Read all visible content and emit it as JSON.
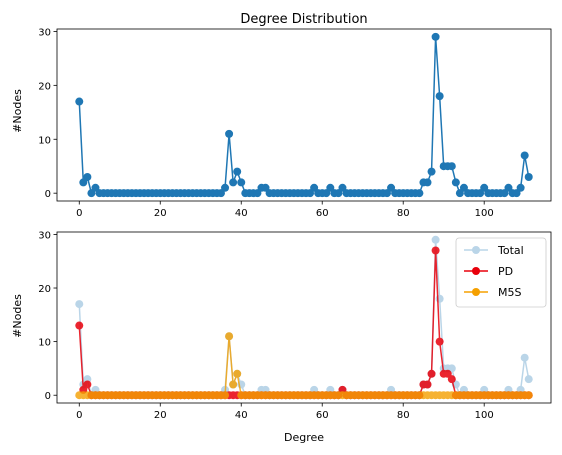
{
  "chart_data": [
    {
      "type": "line",
      "title": "Degree Distribution",
      "xlabel": "",
      "ylabel": "#Nodes",
      "xlim": [
        -5.5,
        116.5
      ],
      "ylim": [
        -1.45,
        30.45
      ],
      "xticks": [
        0,
        20,
        40,
        60,
        80,
        100
      ],
      "yticks": [
        0,
        10,
        20,
        30
      ],
      "grid": false,
      "series": [
        {
          "color": "#1f77b4",
          "marker": "circle",
          "x": [
            0,
            1,
            2,
            3,
            4,
            5,
            6,
            7,
            8,
            9,
            10,
            11,
            12,
            13,
            14,
            15,
            16,
            17,
            18,
            19,
            20,
            21,
            22,
            23,
            24,
            25,
            26,
            27,
            28,
            29,
            30,
            31,
            32,
            33,
            34,
            35,
            36,
            37,
            38,
            39,
            40,
            41,
            42,
            43,
            44,
            45,
            46,
            47,
            48,
            49,
            50,
            51,
            52,
            53,
            54,
            55,
            56,
            57,
            58,
            59,
            60,
            61,
            62,
            63,
            64,
            65,
            66,
            67,
            68,
            69,
            70,
            71,
            72,
            73,
            74,
            75,
            76,
            77,
            78,
            79,
            80,
            81,
            82,
            83,
            84,
            85,
            86,
            87,
            88,
            89,
            90,
            91,
            92,
            93,
            94,
            95,
            96,
            97,
            98,
            99,
            100,
            101,
            102,
            103,
            104,
            105,
            106,
            107,
            108,
            109,
            110,
            111
          ],
          "values": [
            17,
            2,
            3,
            0,
            1,
            0,
            0,
            0,
            0,
            0,
            0,
            0,
            0,
            0,
            0,
            0,
            0,
            0,
            0,
            0,
            0,
            0,
            0,
            0,
            0,
            0,
            0,
            0,
            0,
            0,
            0,
            0,
            0,
            0,
            0,
            0,
            1,
            11,
            2,
            4,
            2,
            0,
            0,
            0,
            0,
            1,
            1,
            0,
            0,
            0,
            0,
            0,
            0,
            0,
            0,
            0,
            0,
            0,
            1,
            0,
            0,
            0,
            1,
            0,
            0,
            1,
            0,
            0,
            0,
            0,
            0,
            0,
            0,
            0,
            0,
            0,
            0,
            1,
            0,
            0,
            0,
            0,
            0,
            0,
            0,
            2,
            2,
            4,
            29,
            18,
            5,
            5,
            5,
            2,
            0,
            1,
            0,
            0,
            0,
            0,
            1,
            0,
            0,
            0,
            0,
            0,
            1,
            0,
            0,
            1,
            7,
            3
          ]
        }
      ]
    },
    {
      "type": "line",
      "title": "",
      "xlabel": "Degree",
      "ylabel": "#Nodes",
      "xlim": [
        -5.5,
        116.5
      ],
      "ylim": [
        -1.45,
        30.45
      ],
      "xticks": [
        0,
        20,
        40,
        60,
        80,
        100
      ],
      "yticks": [
        0,
        10,
        20,
        30
      ],
      "grid": false,
      "legend_position": "top-right",
      "series": [
        {
          "name": "Total",
          "color": "#1f77b4",
          "alpha": 0.3,
          "marker": "circle",
          "x": [
            0,
            1,
            2,
            3,
            4,
            5,
            6,
            7,
            8,
            9,
            10,
            11,
            12,
            13,
            14,
            15,
            16,
            17,
            18,
            19,
            20,
            21,
            22,
            23,
            24,
            25,
            26,
            27,
            28,
            29,
            30,
            31,
            32,
            33,
            34,
            35,
            36,
            37,
            38,
            39,
            40,
            41,
            42,
            43,
            44,
            45,
            46,
            47,
            48,
            49,
            50,
            51,
            52,
            53,
            54,
            55,
            56,
            57,
            58,
            59,
            60,
            61,
            62,
            63,
            64,
            65,
            66,
            67,
            68,
            69,
            70,
            71,
            72,
            73,
            74,
            75,
            76,
            77,
            78,
            79,
            80,
            81,
            82,
            83,
            84,
            85,
            86,
            87,
            88,
            89,
            90,
            91,
            92,
            93,
            94,
            95,
            96,
            97,
            98,
            99,
            100,
            101,
            102,
            103,
            104,
            105,
            106,
            107,
            108,
            109,
            110,
            111
          ],
          "values": [
            17,
            2,
            3,
            0,
            1,
            0,
            0,
            0,
            0,
            0,
            0,
            0,
            0,
            0,
            0,
            0,
            0,
            0,
            0,
            0,
            0,
            0,
            0,
            0,
            0,
            0,
            0,
            0,
            0,
            0,
            0,
            0,
            0,
            0,
            0,
            0,
            1,
            11,
            2,
            4,
            2,
            0,
            0,
            0,
            0,
            1,
            1,
            0,
            0,
            0,
            0,
            0,
            0,
            0,
            0,
            0,
            0,
            0,
            1,
            0,
            0,
            0,
            1,
            0,
            0,
            1,
            0,
            0,
            0,
            0,
            0,
            0,
            0,
            0,
            0,
            0,
            0,
            1,
            0,
            0,
            0,
            0,
            0,
            0,
            0,
            2,
            2,
            4,
            29,
            18,
            5,
            5,
            5,
            2,
            0,
            1,
            0,
            0,
            0,
            0,
            1,
            0,
            0,
            0,
            0,
            0,
            1,
            0,
            0,
            1,
            7,
            3
          ]
        },
        {
          "name": "PD",
          "color": "#e8000b",
          "alpha": 0.85,
          "marker": "circle",
          "x": [
            0,
            1,
            2,
            3,
            4,
            5,
            6,
            7,
            8,
            9,
            10,
            11,
            12,
            13,
            14,
            15,
            16,
            17,
            18,
            19,
            20,
            21,
            22,
            23,
            24,
            25,
            26,
            27,
            28,
            29,
            30,
            31,
            32,
            33,
            34,
            35,
            36,
            37,
            38,
            39,
            40,
            41,
            42,
            43,
            44,
            45,
            46,
            47,
            48,
            49,
            50,
            51,
            52,
            53,
            54,
            55,
            56,
            57,
            58,
            59,
            60,
            61,
            62,
            63,
            64,
            65,
            66,
            67,
            68,
            69,
            70,
            71,
            72,
            73,
            74,
            75,
            76,
            77,
            78,
            79,
            80,
            81,
            82,
            83,
            84,
            85,
            86,
            87,
            88,
            89,
            90,
            91,
            92,
            93,
            94,
            95,
            96,
            97,
            98,
            99,
            100,
            101,
            102,
            103,
            104,
            105,
            106,
            107,
            108,
            109,
            110,
            111
          ],
          "values": [
            13,
            1,
            2,
            0,
            0,
            0,
            0,
            0,
            0,
            0,
            0,
            0,
            0,
            0,
            0,
            0,
            0,
            0,
            0,
            0,
            0,
            0,
            0,
            0,
            0,
            0,
            0,
            0,
            0,
            0,
            0,
            0,
            0,
            0,
            0,
            0,
            0,
            0,
            0,
            0,
            0,
            0,
            0,
            0,
            0,
            0,
            0,
            0,
            0,
            0,
            0,
            0,
            0,
            0,
            0,
            0,
            0,
            0,
            0,
            0,
            0,
            0,
            0,
            0,
            0,
            1,
            0,
            0,
            0,
            0,
            0,
            0,
            0,
            0,
            0,
            0,
            0,
            0,
            0,
            0,
            0,
            0,
            0,
            0,
            0,
            2,
            2,
            4,
            27,
            10,
            4,
            4,
            3,
            0,
            0,
            0,
            0,
            0,
            0,
            0,
            0,
            0,
            0,
            0,
            0,
            0,
            0,
            0,
            0,
            0,
            0,
            0
          ]
        },
        {
          "name": "M5S",
          "color": "#f5a000",
          "alpha": 0.8,
          "marker": "circle",
          "x": [
            0,
            1,
            2,
            3,
            4,
            5,
            6,
            7,
            8,
            9,
            10,
            11,
            12,
            13,
            14,
            15,
            16,
            17,
            18,
            19,
            20,
            21,
            22,
            23,
            24,
            25,
            26,
            27,
            28,
            29,
            30,
            31,
            32,
            33,
            34,
            35,
            36,
            37,
            38,
            39,
            40,
            41,
            42,
            43,
            44,
            45,
            46,
            47,
            48,
            49,
            50,
            51,
            52,
            53,
            54,
            55,
            56,
            57,
            58,
            59,
            60,
            61,
            62,
            63,
            64,
            65,
            66,
            67,
            68,
            69,
            70,
            71,
            72,
            73,
            74,
            75,
            76,
            77,
            78,
            79,
            80,
            81,
            82,
            83,
            84,
            85,
            86,
            87,
            88,
            89,
            90,
            91,
            92,
            93,
            94,
            95,
            96,
            97,
            98,
            99,
            100,
            101,
            102,
            103,
            104,
            105,
            106,
            107,
            108,
            109,
            110,
            111
          ],
          "values": [
            0,
            0,
            0,
            0,
            0,
            0,
            0,
            0,
            0,
            0,
            0,
            0,
            0,
            0,
            0,
            0,
            0,
            0,
            0,
            0,
            0,
            0,
            0,
            0,
            0,
            0,
            0,
            0,
            0,
            0,
            0,
            0,
            0,
            0,
            0,
            0,
            0,
            11,
            2,
            4,
            0,
            0,
            0,
            0,
            0,
            0,
            0,
            0,
            0,
            0,
            0,
            0,
            0,
            0,
            0,
            0,
            0,
            0,
            0,
            0,
            0,
            0,
            0,
            0,
            0,
            0,
            0,
            0,
            0,
            0,
            0,
            0,
            0,
            0,
            0,
            0,
            0,
            0,
            0,
            0,
            0,
            0,
            0,
            0,
            0,
            0,
            0,
            0,
            0,
            0,
            0,
            0,
            0,
            0,
            0,
            0,
            0,
            0,
            0,
            0,
            0,
            0,
            0,
            0,
            0,
            0,
            0,
            0,
            0,
            0,
            0,
            0
          ]
        }
      ]
    }
  ]
}
